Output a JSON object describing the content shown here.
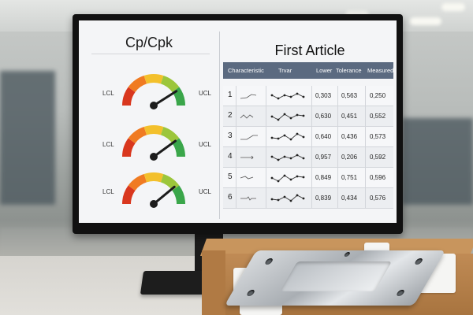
{
  "dashboard": {
    "cp_title": "Cp/Cpk",
    "gauges": [
      {
        "lcl": "LCL",
        "ucl": "UCL",
        "needle": 0.82
      },
      {
        "lcl": "LCL",
        "ucl": "UCL",
        "needle": 0.8
      },
      {
        "lcl": "LCL",
        "ucl": "UCL",
        "needle": 0.78
      }
    ],
    "gauge_colors": [
      "#d9371e",
      "#f07b22",
      "#f3c02c",
      "#9cc63b",
      "#3aa64a"
    ],
    "first_article_title": "First Article",
    "header_color": "#5b6a80",
    "columns": [
      "Characteristic",
      "Trvar",
      "Lower",
      "Tolerance",
      "Measured"
    ],
    "rows": [
      {
        "index": "1",
        "lower": "0,303",
        "tolerance": "0,563",
        "measured": "0,250"
      },
      {
        "index": "2",
        "lower": "0,630",
        "tolerance": "0,451",
        "measured": "0,552"
      },
      {
        "index": "3",
        "lower": "0,640",
        "tolerance": "0,436",
        "measured": "0,573"
      },
      {
        "index": "4",
        "lower": "0,957",
        "tolerance": "0,206",
        "measured": "0,592"
      },
      {
        "index": "5",
        "lower": "0,849",
        "tolerance": "0,751",
        "measured": "0,596"
      },
      {
        "index": "6",
        "lower": "0,839",
        "tolerance": "0,434",
        "measured": "0,576"
      }
    ]
  }
}
